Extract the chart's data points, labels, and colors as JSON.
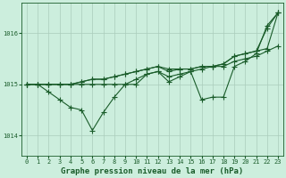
{
  "background_color": "#cceedd",
  "grid_color": "#aaccbb",
  "line_color": "#1a5c2a",
  "title": "Graphe pression niveau de la mer (hPa)",
  "xlim": [
    -0.5,
    23.5
  ],
  "ylim": [
    1013.6,
    1016.6
  ],
  "yticks": [
    1014,
    1015,
    1016
  ],
  "xticks": [
    0,
    1,
    2,
    3,
    4,
    5,
    6,
    7,
    8,
    9,
    10,
    11,
    12,
    13,
    14,
    15,
    16,
    17,
    18,
    19,
    20,
    21,
    22,
    23
  ],
  "series": [
    [
      1015.0,
      1015.0,
      1014.85,
      1014.7,
      1014.55,
      1014.5,
      1014.1,
      1014.45,
      1014.75,
      1015.0,
      1015.0,
      1015.2,
      1015.25,
      1015.05,
      1015.15,
      1015.25,
      1014.7,
      1014.75,
      1014.75,
      1015.35,
      1015.45,
      1015.6,
      1016.15,
      1016.4
    ],
    [
      1015.0,
      1015.0,
      1015.0,
      1015.0,
      1015.0,
      1015.0,
      1015.0,
      1015.0,
      1015.0,
      1015.0,
      1015.1,
      1015.2,
      1015.25,
      1015.15,
      1015.2,
      1015.25,
      1015.3,
      1015.35,
      1015.35,
      1015.45,
      1015.5,
      1015.55,
      1015.65,
      1015.75
    ],
    [
      1015.0,
      1015.0,
      1015.0,
      1015.0,
      1015.0,
      1015.05,
      1015.1,
      1015.1,
      1015.15,
      1015.2,
      1015.25,
      1015.3,
      1015.35,
      1015.3,
      1015.3,
      1015.3,
      1015.35,
      1015.35,
      1015.4,
      1015.55,
      1015.6,
      1015.65,
      1015.7,
      1016.4
    ],
    [
      1015.0,
      1015.0,
      1015.0,
      1015.0,
      1015.0,
      1015.05,
      1015.1,
      1015.1,
      1015.15,
      1015.2,
      1015.25,
      1015.3,
      1015.35,
      1015.25,
      1015.3,
      1015.3,
      1015.35,
      1015.35,
      1015.4,
      1015.55,
      1015.6,
      1015.65,
      1016.1,
      1016.4
    ]
  ],
  "marker_size": 2.0,
  "line_width": 0.8,
  "title_fontsize": 6.5,
  "tick_fontsize": 5.0
}
